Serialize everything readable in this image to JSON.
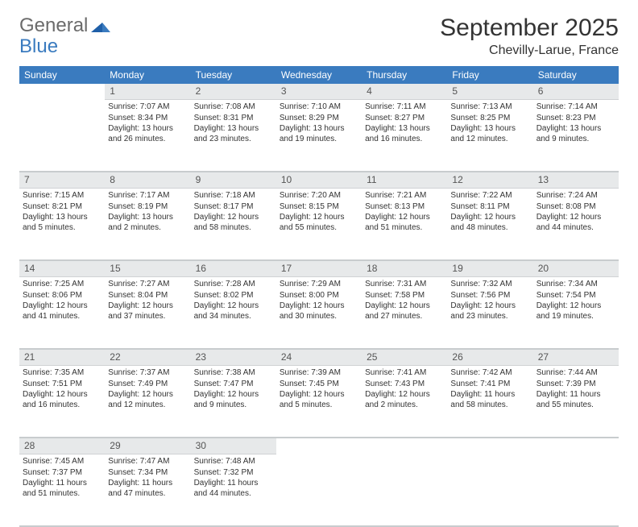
{
  "logo": {
    "part1": "General",
    "part2": "Blue"
  },
  "title": "September 2025",
  "location": "Chevilly-Larue, France",
  "header_bg": "#3a7bbf",
  "header_fg": "#ffffff",
  "daynum_bg": "#e7e9ea",
  "days": [
    "Sunday",
    "Monday",
    "Tuesday",
    "Wednesday",
    "Thursday",
    "Friday",
    "Saturday"
  ],
  "weeks": [
    [
      {
        "n": "",
        "sr": "",
        "ss": "",
        "dl": ""
      },
      {
        "n": "1",
        "sr": "Sunrise: 7:07 AM",
        "ss": "Sunset: 8:34 PM",
        "dl": "Daylight: 13 hours and 26 minutes."
      },
      {
        "n": "2",
        "sr": "Sunrise: 7:08 AM",
        "ss": "Sunset: 8:31 PM",
        "dl": "Daylight: 13 hours and 23 minutes."
      },
      {
        "n": "3",
        "sr": "Sunrise: 7:10 AM",
        "ss": "Sunset: 8:29 PM",
        "dl": "Daylight: 13 hours and 19 minutes."
      },
      {
        "n": "4",
        "sr": "Sunrise: 7:11 AM",
        "ss": "Sunset: 8:27 PM",
        "dl": "Daylight: 13 hours and 16 minutes."
      },
      {
        "n": "5",
        "sr": "Sunrise: 7:13 AM",
        "ss": "Sunset: 8:25 PM",
        "dl": "Daylight: 13 hours and 12 minutes."
      },
      {
        "n": "6",
        "sr": "Sunrise: 7:14 AM",
        "ss": "Sunset: 8:23 PM",
        "dl": "Daylight: 13 hours and 9 minutes."
      }
    ],
    [
      {
        "n": "7",
        "sr": "Sunrise: 7:15 AM",
        "ss": "Sunset: 8:21 PM",
        "dl": "Daylight: 13 hours and 5 minutes."
      },
      {
        "n": "8",
        "sr": "Sunrise: 7:17 AM",
        "ss": "Sunset: 8:19 PM",
        "dl": "Daylight: 13 hours and 2 minutes."
      },
      {
        "n": "9",
        "sr": "Sunrise: 7:18 AM",
        "ss": "Sunset: 8:17 PM",
        "dl": "Daylight: 12 hours and 58 minutes."
      },
      {
        "n": "10",
        "sr": "Sunrise: 7:20 AM",
        "ss": "Sunset: 8:15 PM",
        "dl": "Daylight: 12 hours and 55 minutes."
      },
      {
        "n": "11",
        "sr": "Sunrise: 7:21 AM",
        "ss": "Sunset: 8:13 PM",
        "dl": "Daylight: 12 hours and 51 minutes."
      },
      {
        "n": "12",
        "sr": "Sunrise: 7:22 AM",
        "ss": "Sunset: 8:11 PM",
        "dl": "Daylight: 12 hours and 48 minutes."
      },
      {
        "n": "13",
        "sr": "Sunrise: 7:24 AM",
        "ss": "Sunset: 8:08 PM",
        "dl": "Daylight: 12 hours and 44 minutes."
      }
    ],
    [
      {
        "n": "14",
        "sr": "Sunrise: 7:25 AM",
        "ss": "Sunset: 8:06 PM",
        "dl": "Daylight: 12 hours and 41 minutes."
      },
      {
        "n": "15",
        "sr": "Sunrise: 7:27 AM",
        "ss": "Sunset: 8:04 PM",
        "dl": "Daylight: 12 hours and 37 minutes."
      },
      {
        "n": "16",
        "sr": "Sunrise: 7:28 AM",
        "ss": "Sunset: 8:02 PM",
        "dl": "Daylight: 12 hours and 34 minutes."
      },
      {
        "n": "17",
        "sr": "Sunrise: 7:29 AM",
        "ss": "Sunset: 8:00 PM",
        "dl": "Daylight: 12 hours and 30 minutes."
      },
      {
        "n": "18",
        "sr": "Sunrise: 7:31 AM",
        "ss": "Sunset: 7:58 PM",
        "dl": "Daylight: 12 hours and 27 minutes."
      },
      {
        "n": "19",
        "sr": "Sunrise: 7:32 AM",
        "ss": "Sunset: 7:56 PM",
        "dl": "Daylight: 12 hours and 23 minutes."
      },
      {
        "n": "20",
        "sr": "Sunrise: 7:34 AM",
        "ss": "Sunset: 7:54 PM",
        "dl": "Daylight: 12 hours and 19 minutes."
      }
    ],
    [
      {
        "n": "21",
        "sr": "Sunrise: 7:35 AM",
        "ss": "Sunset: 7:51 PM",
        "dl": "Daylight: 12 hours and 16 minutes."
      },
      {
        "n": "22",
        "sr": "Sunrise: 7:37 AM",
        "ss": "Sunset: 7:49 PM",
        "dl": "Daylight: 12 hours and 12 minutes."
      },
      {
        "n": "23",
        "sr": "Sunrise: 7:38 AM",
        "ss": "Sunset: 7:47 PM",
        "dl": "Daylight: 12 hours and 9 minutes."
      },
      {
        "n": "24",
        "sr": "Sunrise: 7:39 AM",
        "ss": "Sunset: 7:45 PM",
        "dl": "Daylight: 12 hours and 5 minutes."
      },
      {
        "n": "25",
        "sr": "Sunrise: 7:41 AM",
        "ss": "Sunset: 7:43 PM",
        "dl": "Daylight: 12 hours and 2 minutes."
      },
      {
        "n": "26",
        "sr": "Sunrise: 7:42 AM",
        "ss": "Sunset: 7:41 PM",
        "dl": "Daylight: 11 hours and 58 minutes."
      },
      {
        "n": "27",
        "sr": "Sunrise: 7:44 AM",
        "ss": "Sunset: 7:39 PM",
        "dl": "Daylight: 11 hours and 55 minutes."
      }
    ],
    [
      {
        "n": "28",
        "sr": "Sunrise: 7:45 AM",
        "ss": "Sunset: 7:37 PM",
        "dl": "Daylight: 11 hours and 51 minutes."
      },
      {
        "n": "29",
        "sr": "Sunrise: 7:47 AM",
        "ss": "Sunset: 7:34 PM",
        "dl": "Daylight: 11 hours and 47 minutes."
      },
      {
        "n": "30",
        "sr": "Sunrise: 7:48 AM",
        "ss": "Sunset: 7:32 PM",
        "dl": "Daylight: 11 hours and 44 minutes."
      },
      {
        "n": "",
        "sr": "",
        "ss": "",
        "dl": ""
      },
      {
        "n": "",
        "sr": "",
        "ss": "",
        "dl": ""
      },
      {
        "n": "",
        "sr": "",
        "ss": "",
        "dl": ""
      },
      {
        "n": "",
        "sr": "",
        "ss": "",
        "dl": ""
      }
    ]
  ]
}
